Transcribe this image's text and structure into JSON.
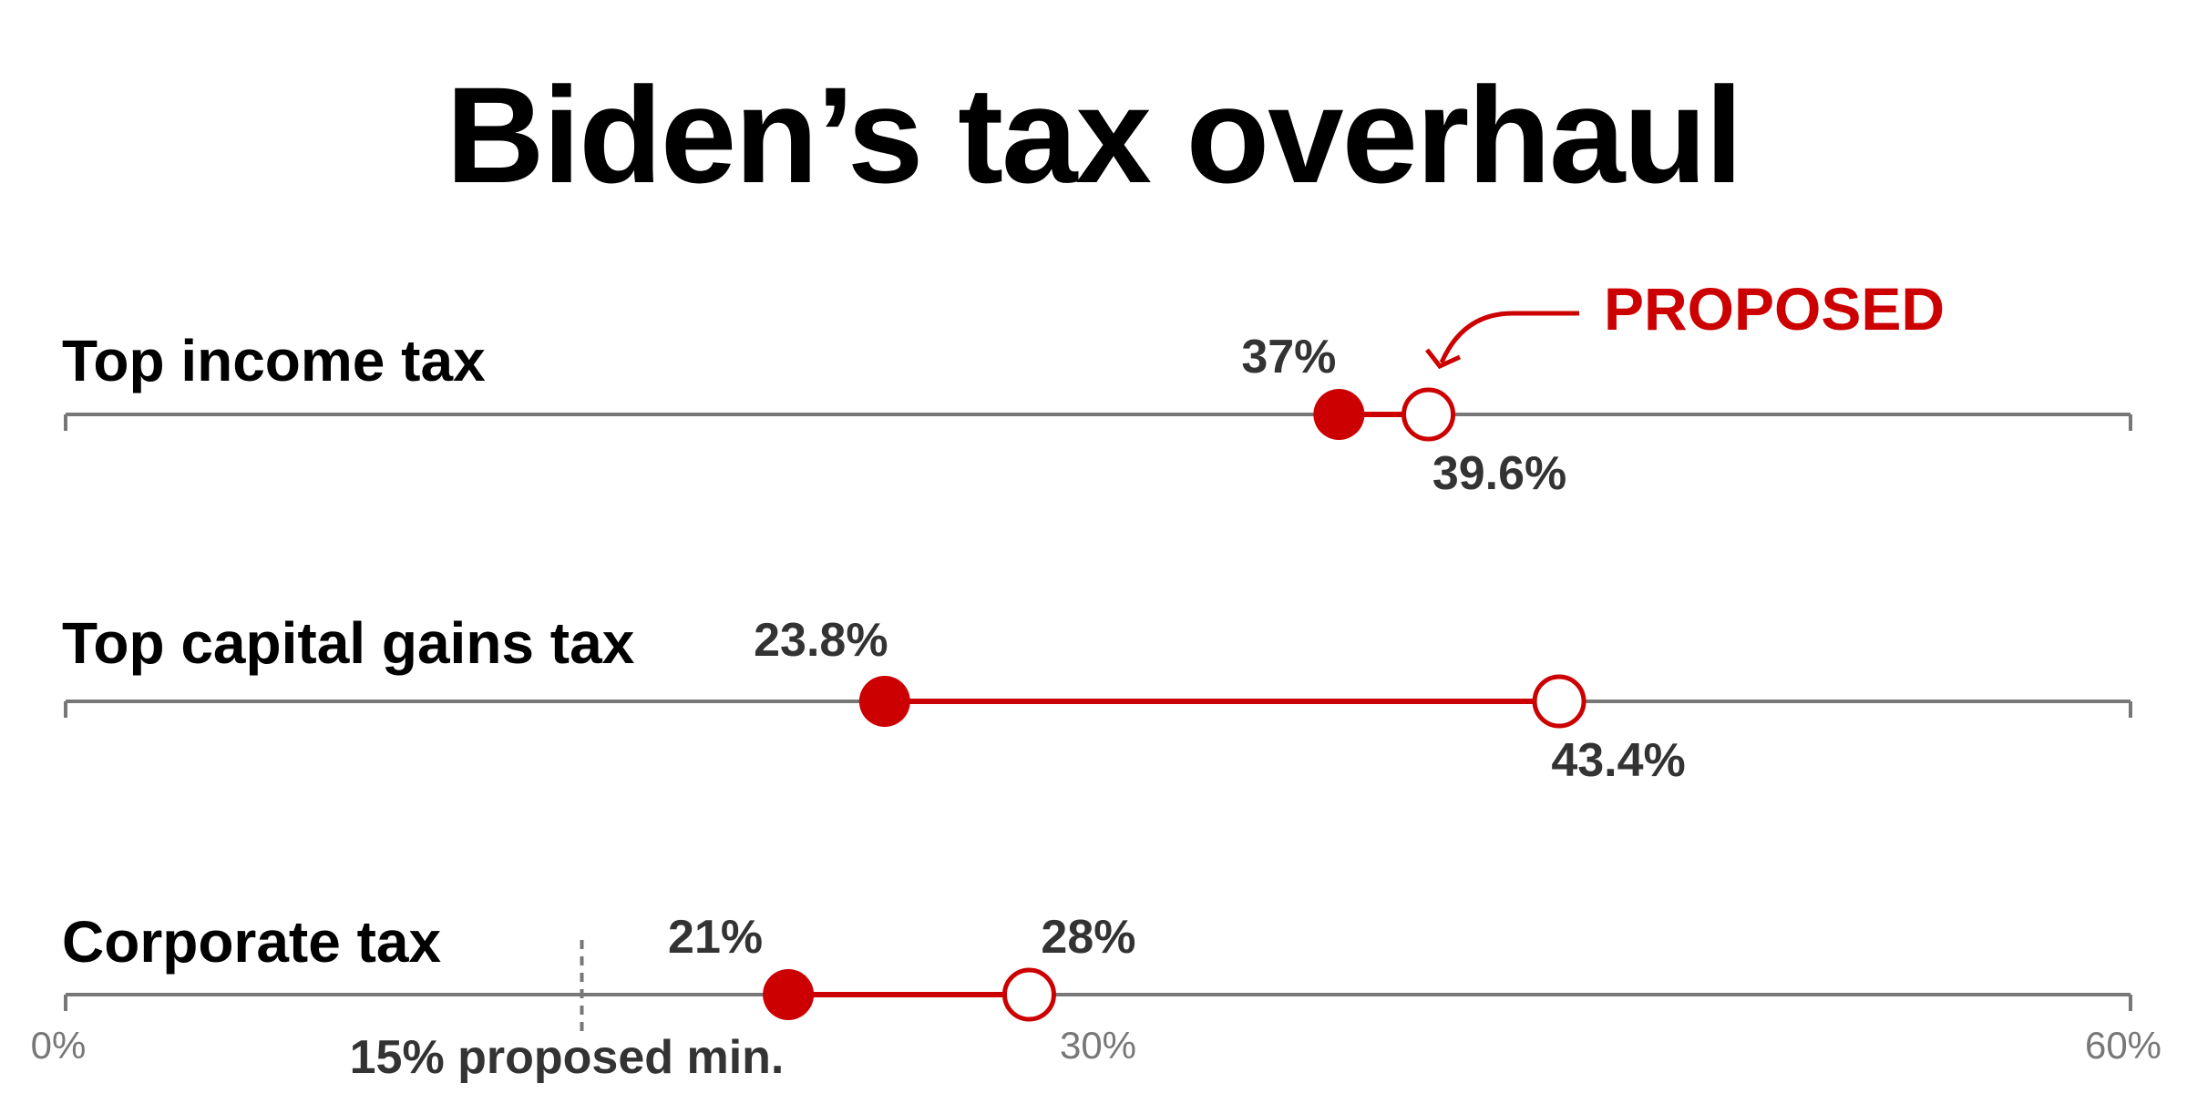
{
  "chart_data": {
    "type": "dumbbell",
    "title": "Biden’s tax overhaul",
    "xlim": [
      0,
      60
    ],
    "ticks": [
      {
        "value": 0,
        "label": "0%"
      },
      {
        "value": 30,
        "label": "30%"
      },
      {
        "value": 60,
        "label": "60%"
      }
    ],
    "legend": {
      "proposed_label": "PROPOSED"
    },
    "rows": [
      {
        "category": "Top income tax",
        "current": 37,
        "current_label": "37%",
        "proposed": 39.6,
        "proposed_label": "39.6%"
      },
      {
        "category": "Top capital gains tax",
        "current": 23.8,
        "current_label": "23.8%",
        "proposed": 43.4,
        "proposed_label": "43.4%"
      },
      {
        "category": "Corporate tax",
        "current": 21,
        "current_label": "21%",
        "proposed": 28,
        "proposed_label": "28%"
      }
    ],
    "reference": {
      "value": 15,
      "label": "15% proposed min."
    },
    "colors": {
      "accent": "#cc0000",
      "axis": "#777777",
      "value_text": "#333333",
      "title_text": "#000000"
    },
    "grid": false
  }
}
